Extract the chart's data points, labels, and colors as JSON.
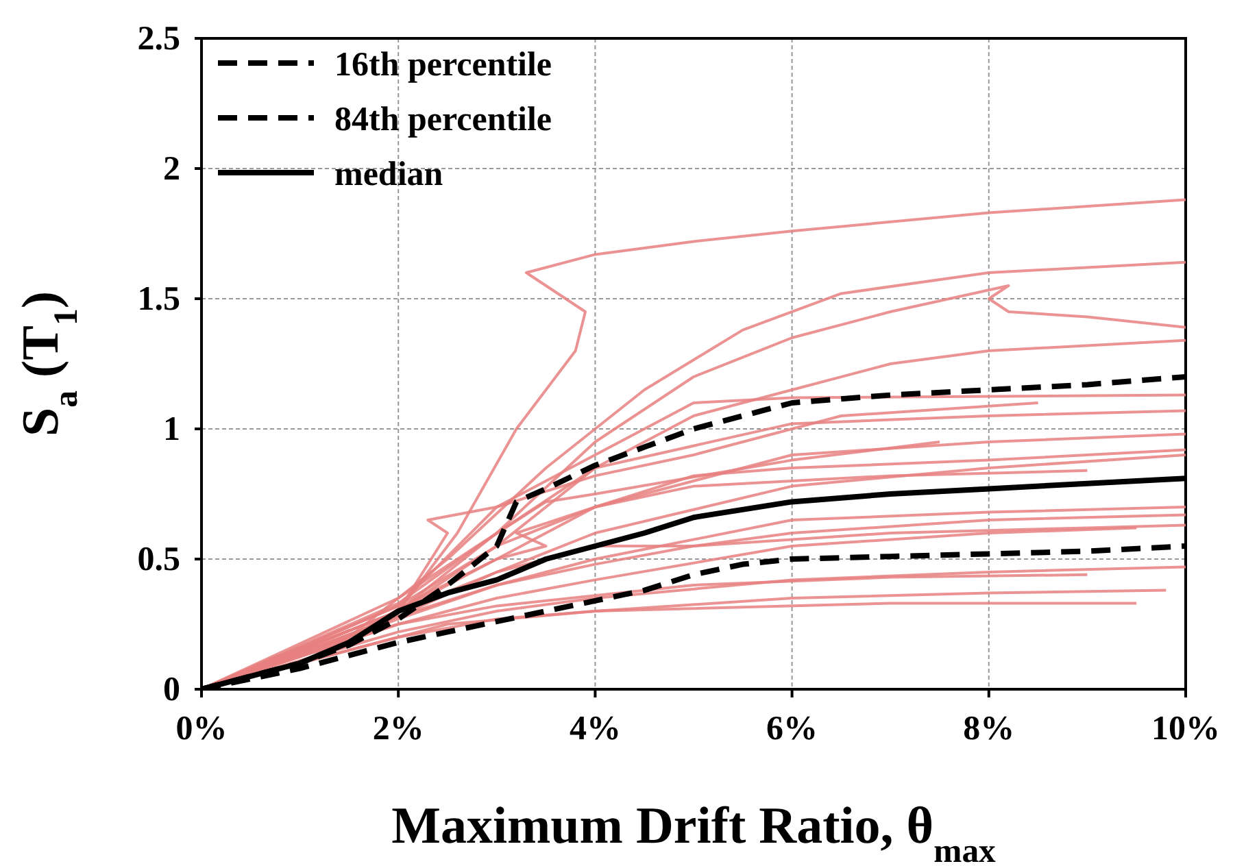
{
  "chart_data": {
    "type": "line",
    "xlabel": "Maximum Drift Ratio, θ$_{max}$",
    "ylabel": "S$_{a}$ (T$_{1}$)",
    "xlim": [
      0,
      10
    ],
    "xticks": [
      {
        "value": 0,
        "label": "0%"
      },
      {
        "value": 2,
        "label": "2%"
      },
      {
        "value": 4,
        "label": "4%"
      },
      {
        "value": 6,
        "label": "6%"
      },
      {
        "value": 8,
        "label": "8%"
      },
      {
        "value": 10,
        "label": "10%"
      }
    ],
    "ylim": [
      0,
      2.5
    ],
    "yticks": [
      0,
      0.5,
      1,
      1.5,
      2,
      2.5
    ],
    "grid": true,
    "legend": "top left",
    "marker": "none",
    "series": [
      {
        "name": "16th percentile",
        "color": "#000000",
        "line_style": "dashed",
        "x": [
          0,
          1,
          1.5,
          2,
          2.5,
          3,
          3.5,
          4,
          4.5,
          5,
          5.5,
          6,
          7,
          8,
          9,
          10
        ],
        "values": [
          0,
          0.08,
          0.13,
          0.18,
          0.22,
          0.26,
          0.3,
          0.34,
          0.38,
          0.44,
          0.48,
          0.5,
          0.51,
          0.52,
          0.53,
          0.55
        ]
      },
      {
        "name": "84th percentile",
        "color": "#000000",
        "line_style": "dashed",
        "x": [
          0,
          1,
          1.5,
          2,
          2.5,
          3,
          3.2,
          3.5,
          4,
          4.5,
          5,
          6,
          7,
          8,
          9,
          10
        ],
        "values": [
          0,
          0.1,
          0.17,
          0.27,
          0.4,
          0.55,
          0.72,
          0.77,
          0.86,
          0.93,
          1.0,
          1.1,
          1.13,
          1.15,
          1.17,
          1.2
        ]
      },
      {
        "name": "median",
        "color": "#000000",
        "line_style": "solid",
        "x": [
          0,
          1,
          1.5,
          2,
          2.5,
          3,
          3.5,
          4,
          4.5,
          5,
          6,
          7,
          8,
          9,
          10
        ],
        "values": [
          0,
          0.1,
          0.18,
          0.3,
          0.37,
          0.42,
          0.5,
          0.55,
          0.6,
          0.66,
          0.72,
          0.75,
          0.77,
          0.79,
          0.81
        ]
      },
      {
        "color": "#e88080",
        "x": [
          0,
          1,
          2,
          2.6,
          3.2,
          3.8,
          3.9,
          3.5,
          3.3,
          4,
          5,
          6,
          8,
          10
        ],
        "values": [
          0,
          0.1,
          0.3,
          0.6,
          1.0,
          1.3,
          1.45,
          1.55,
          1.6,
          1.67,
          1.72,
          1.76,
          1.83,
          1.88
        ]
      },
      {
        "color": "#e88080",
        "x": [
          0,
          1.5,
          2.5,
          3.5,
          4.5,
          5.5,
          6.5,
          8,
          10
        ],
        "values": [
          0,
          0.2,
          0.5,
          0.85,
          1.15,
          1.38,
          1.52,
          1.6,
          1.64
        ]
      },
      {
        "color": "#e88080",
        "x": [
          0,
          2,
          3,
          4,
          5,
          6,
          7,
          8.2,
          8,
          8.2,
          9,
          10
        ],
        "values": [
          0,
          0.3,
          0.6,
          0.95,
          1.2,
          1.35,
          1.45,
          1.55,
          1.5,
          1.45,
          1.43,
          1.39
        ]
      },
      {
        "color": "#e88080",
        "x": [
          0,
          2,
          3,
          4,
          5,
          6,
          7,
          8,
          10
        ],
        "values": [
          0,
          0.3,
          0.55,
          0.85,
          1.05,
          1.15,
          1.25,
          1.3,
          1.34
        ]
      },
      {
        "color": "#e88080",
        "x": [
          0,
          2,
          3,
          4,
          6,
          8,
          10
        ],
        "values": [
          0,
          0.33,
          0.6,
          0.85,
          1.02,
          1.05,
          1.07
        ]
      },
      {
        "color": "#e88080",
        "x": [
          0,
          2,
          3,
          4,
          6,
          8,
          10
        ],
        "values": [
          0,
          0.3,
          0.5,
          0.7,
          0.9,
          0.95,
          0.98
        ]
      },
      {
        "color": "#e88080",
        "x": [
          0,
          2,
          3,
          4,
          6,
          8,
          10
        ],
        "values": [
          0,
          0.28,
          0.45,
          0.6,
          0.78,
          0.85,
          0.9
        ]
      },
      {
        "color": "#e88080",
        "x": [
          0,
          2,
          3,
          4,
          6,
          8,
          10
        ],
        "values": [
          0,
          0.27,
          0.4,
          0.5,
          0.65,
          0.68,
          0.7
        ]
      },
      {
        "color": "#e88080",
        "x": [
          0,
          2,
          3,
          4,
          6,
          8,
          9.5
        ],
        "values": [
          0,
          0.25,
          0.35,
          0.42,
          0.55,
          0.6,
          0.62
        ]
      },
      {
        "color": "#e88080",
        "x": [
          0,
          2,
          3,
          4,
          6,
          8,
          10
        ],
        "values": [
          0,
          0.22,
          0.3,
          0.35,
          0.42,
          0.45,
          0.47
        ]
      },
      {
        "color": "#e88080",
        "x": [
          0,
          2,
          3,
          4,
          6,
          8,
          9.8
        ],
        "values": [
          0,
          0.2,
          0.27,
          0.3,
          0.35,
          0.37,
          0.38
        ]
      },
      {
        "color": "#e88080",
        "x": [
          0,
          1.5,
          2.5,
          4,
          7,
          9.5
        ],
        "values": [
          0,
          0.15,
          0.25,
          0.3,
          0.33,
          0.33
        ]
      },
      {
        "color": "#e88080",
        "x": [
          0,
          2,
          2.8,
          3.5,
          4,
          6,
          7.5
        ],
        "values": [
          0,
          0.35,
          0.55,
          0.72,
          0.75,
          0.88,
          0.95
        ]
      },
      {
        "color": "#e88080",
        "x": [
          0,
          2,
          2.5,
          2.3,
          3,
          4,
          5,
          6.5,
          8.5
        ],
        "values": [
          0,
          0.3,
          0.6,
          0.65,
          0.7,
          0.82,
          0.9,
          1.05,
          1.1
        ]
      },
      {
        "color": "#e88080",
        "x": [
          0,
          2,
          3,
          4,
          5,
          6,
          8,
          10
        ],
        "values": [
          0,
          0.3,
          0.45,
          0.55,
          0.55,
          0.6,
          0.65,
          0.67
        ]
      },
      {
        "color": "#e88080",
        "x": [
          0,
          2,
          3,
          4,
          5,
          6,
          8,
          10
        ],
        "values": [
          0,
          0.32,
          0.55,
          0.7,
          0.82,
          0.85,
          0.88,
          0.92
        ]
      },
      {
        "color": "#e88080",
        "x": [
          0,
          1.5,
          2.2,
          3,
          3.5,
          3.2,
          4,
          5,
          7,
          9
        ],
        "values": [
          0,
          0.2,
          0.35,
          0.5,
          0.55,
          0.6,
          0.7,
          0.78,
          0.82,
          0.84
        ]
      },
      {
        "color": "#e88080",
        "x": [
          0,
          2,
          3,
          4,
          5,
          7,
          9,
          10
        ],
        "values": [
          0,
          0.28,
          0.4,
          0.48,
          0.55,
          0.6,
          0.62,
          0.63
        ]
      },
      {
        "color": "#e88080",
        "x": [
          0,
          2,
          3,
          4.5,
          5,
          6,
          10
        ],
        "values": [
          0,
          0.32,
          0.7,
          1.0,
          1.1,
          1.12,
          1.13
        ]
      },
      {
        "color": "#e88080",
        "x": [
          0,
          2,
          3,
          5,
          7,
          9
        ],
        "values": [
          0,
          0.25,
          0.32,
          0.4,
          0.43,
          0.44
        ]
      }
    ]
  }
}
